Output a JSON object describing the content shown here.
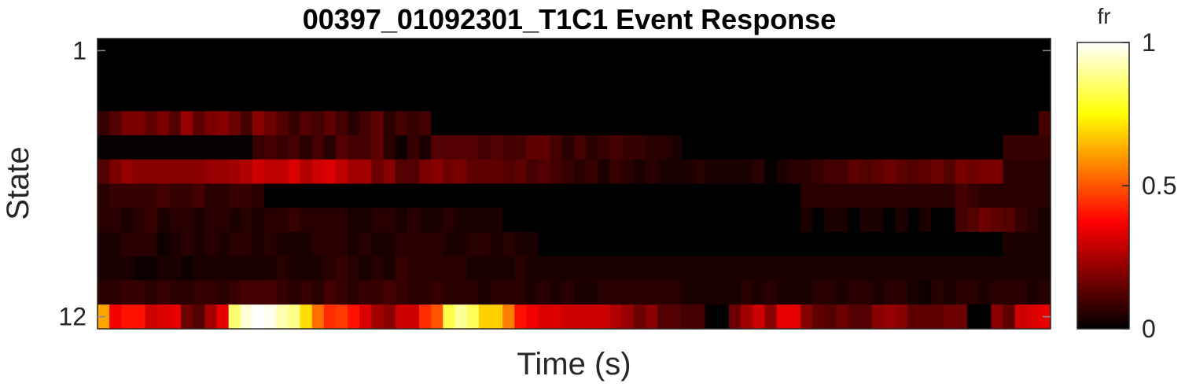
{
  "chart_data": {
    "type": "heatmap",
    "title": "00397_01092301_T1C1 Event Response",
    "xlabel": "Time (s)",
    "ylabel": "State",
    "y_tick_labels": [
      "1",
      "12"
    ],
    "y_ticks": [
      1,
      12
    ],
    "x_tick_labels": [],
    "n_rows": 12,
    "n_cols": 80,
    "colormap": "hot",
    "colorbar": {
      "title": "fr",
      "tick_labels": [
        "1",
        "0.5",
        "0"
      ],
      "ticks": [
        1,
        0.5,
        0
      ],
      "clim": [
        0,
        1
      ]
    },
    "rows": [
      {
        "state": 1,
        "values": [
          0.0,
          0.0,
          0.0,
          0.0,
          0.0,
          0.0,
          0.0,
          0.0,
          0.0,
          0.0,
          0.0,
          0.0,
          0.0,
          0.0,
          0.0,
          0.0,
          0.0,
          0.0,
          0.0,
          0.0,
          0.0,
          0.0,
          0.0,
          0.0,
          0.0,
          0.0,
          0.0,
          0.0,
          0.0,
          0.0,
          0.0,
          0.0,
          0.0,
          0.0,
          0.0,
          0.0,
          0.0,
          0.0,
          0.0,
          0.0,
          0.0,
          0.0,
          0.0,
          0.0,
          0.0,
          0.0,
          0.0,
          0.0,
          0.0,
          0.0,
          0.0,
          0.0,
          0.0,
          0.0,
          0.0,
          0.0,
          0.0,
          0.0,
          0.0,
          0.0,
          0.0,
          0.0,
          0.0,
          0.0,
          0.0,
          0.0,
          0.0,
          0.0,
          0.0,
          0.0,
          0.0,
          0.0,
          0.0,
          0.0,
          0.0,
          0.0,
          0.0,
          0.0,
          0.0,
          0.0
        ]
      },
      {
        "state": 2,
        "values": [
          0.0,
          0.0,
          0.0,
          0.0,
          0.0,
          0.0,
          0.0,
          0.0,
          0.0,
          0.0,
          0.0,
          0.0,
          0.0,
          0.0,
          0.0,
          0.0,
          0.0,
          0.0,
          0.0,
          0.0,
          0.0,
          0.0,
          0.0,
          0.0,
          0.0,
          0.0,
          0.0,
          0.0,
          0.0,
          0.0,
          0.0,
          0.0,
          0.0,
          0.0,
          0.0,
          0.0,
          0.0,
          0.0,
          0.0,
          0.0,
          0.0,
          0.0,
          0.0,
          0.0,
          0.0,
          0.0,
          0.0,
          0.0,
          0.0,
          0.0,
          0.0,
          0.0,
          0.0,
          0.0,
          0.0,
          0.0,
          0.0,
          0.0,
          0.0,
          0.0,
          0.0,
          0.0,
          0.0,
          0.0,
          0.0,
          0.0,
          0.0,
          0.0,
          0.0,
          0.0,
          0.0,
          0.0,
          0.0,
          0.0,
          0.0,
          0.0,
          0.0,
          0.0,
          0.0,
          0.0
        ]
      },
      {
        "state": 3,
        "values": [
          0.0,
          0.0,
          0.0,
          0.0,
          0.0,
          0.0,
          0.0,
          0.0,
          0.0,
          0.0,
          0.0,
          0.0,
          0.0,
          0.0,
          0.0,
          0.0,
          0.0,
          0.0,
          0.0,
          0.0,
          0.0,
          0.0,
          0.0,
          0.0,
          0.0,
          0.0,
          0.0,
          0.0,
          0.0,
          0.0,
          0.0,
          0.0,
          0.0,
          0.0,
          0.0,
          0.0,
          0.0,
          0.0,
          0.0,
          0.0,
          0.0,
          0.0,
          0.0,
          0.0,
          0.0,
          0.0,
          0.0,
          0.0,
          0.0,
          0.0,
          0.0,
          0.0,
          0.0,
          0.0,
          0.0,
          0.0,
          0.0,
          0.0,
          0.0,
          0.0,
          0.0,
          0.0,
          0.0,
          0.0,
          0.0,
          0.0,
          0.0,
          0.0,
          0.0,
          0.0,
          0.0,
          0.0,
          0.0,
          0.0,
          0.0,
          0.0,
          0.0,
          0.0,
          0.0,
          0.0
        ]
      },
      {
        "state": 4,
        "values": [
          0.08,
          0.12,
          0.18,
          0.18,
          0.14,
          0.18,
          0.12,
          0.22,
          0.14,
          0.18,
          0.2,
          0.16,
          0.1,
          0.2,
          0.16,
          0.12,
          0.08,
          0.12,
          0.1,
          0.14,
          0.1,
          0.06,
          0.1,
          0.14,
          0.06,
          0.1,
          0.08,
          0.1,
          0.0,
          0.0,
          0.0,
          0.0,
          0.0,
          0.0,
          0.0,
          0.0,
          0.0,
          0.0,
          0.0,
          0.0,
          0.0,
          0.0,
          0.0,
          0.0,
          0.0,
          0.0,
          0.0,
          0.0,
          0.0,
          0.0,
          0.0,
          0.0,
          0.0,
          0.0,
          0.0,
          0.0,
          0.0,
          0.0,
          0.0,
          0.0,
          0.0,
          0.0,
          0.0,
          0.0,
          0.0,
          0.0,
          0.0,
          0.0,
          0.0,
          0.0,
          0.0,
          0.0,
          0.0,
          0.0,
          0.0,
          0.0,
          0.0,
          0.0,
          0.0,
          0.1
        ]
      },
      {
        "state": 5,
        "values": [
          0.01,
          0.01,
          0.01,
          0.01,
          0.01,
          0.01,
          0.01,
          0.01,
          0.01,
          0.01,
          0.01,
          0.01,
          0.01,
          0.08,
          0.1,
          0.08,
          0.1,
          0.06,
          0.1,
          0.06,
          0.12,
          0.1,
          0.1,
          0.14,
          0.06,
          0.02,
          0.08,
          0.04,
          0.12,
          0.12,
          0.12,
          0.12,
          0.1,
          0.12,
          0.1,
          0.1,
          0.14,
          0.14,
          0.1,
          0.06,
          0.1,
          0.06,
          0.08,
          0.1,
          0.08,
          0.08,
          0.06,
          0.06,
          0.04,
          0.0,
          0.0,
          0.0,
          0.0,
          0.0,
          0.0,
          0.0,
          0.0,
          0.0,
          0.0,
          0.0,
          0.0,
          0.0,
          0.0,
          0.0,
          0.0,
          0.0,
          0.0,
          0.0,
          0.0,
          0.0,
          0.0,
          0.0,
          0.0,
          0.0,
          0.0,
          0.0,
          0.08,
          0.08,
          0.08,
          0.08
        ]
      },
      {
        "state": 6,
        "values": [
          0.12,
          0.18,
          0.22,
          0.2,
          0.2,
          0.2,
          0.2,
          0.2,
          0.2,
          0.22,
          0.22,
          0.24,
          0.26,
          0.3,
          0.28,
          0.28,
          0.32,
          0.26,
          0.3,
          0.32,
          0.28,
          0.24,
          0.24,
          0.16,
          0.2,
          0.12,
          0.12,
          0.18,
          0.2,
          0.16,
          0.18,
          0.14,
          0.14,
          0.14,
          0.12,
          0.14,
          0.1,
          0.12,
          0.1,
          0.08,
          0.06,
          0.08,
          0.04,
          0.08,
          0.06,
          0.04,
          0.06,
          0.04,
          0.04,
          0.04,
          0.06,
          0.04,
          0.04,
          0.04,
          0.04,
          0.06,
          0.01,
          0.04,
          0.06,
          0.06,
          0.08,
          0.1,
          0.1,
          0.14,
          0.12,
          0.14,
          0.16,
          0.14,
          0.12,
          0.14,
          0.16,
          0.12,
          0.18,
          0.16,
          0.18,
          0.18,
          0.06,
          0.06,
          0.06,
          0.06
        ]
      },
      {
        "state": 7,
        "values": [
          0.06,
          0.08,
          0.08,
          0.08,
          0.08,
          0.1,
          0.08,
          0.08,
          0.1,
          0.06,
          0.06,
          0.08,
          0.08,
          0.06,
          0.0,
          0.0,
          0.0,
          0.0,
          0.0,
          0.0,
          0.0,
          0.0,
          0.0,
          0.0,
          0.0,
          0.0,
          0.0,
          0.0,
          0.0,
          0.0,
          0.0,
          0.0,
          0.0,
          0.0,
          0.0,
          0.0,
          0.0,
          0.0,
          0.0,
          0.0,
          0.0,
          0.0,
          0.0,
          0.0,
          0.0,
          0.0,
          0.0,
          0.0,
          0.0,
          0.0,
          0.0,
          0.0,
          0.0,
          0.0,
          0.0,
          0.0,
          0.0,
          0.0,
          0.0,
          0.06,
          0.06,
          0.06,
          0.06,
          0.06,
          0.06,
          0.06,
          0.06,
          0.06,
          0.06,
          0.06,
          0.06,
          0.06,
          0.1,
          0.08,
          0.06,
          0.06,
          0.06,
          0.06,
          0.06,
          0.06
        ]
      },
      {
        "state": 8,
        "values": [
          0.06,
          0.06,
          0.04,
          0.06,
          0.08,
          0.04,
          0.06,
          0.06,
          0.04,
          0.06,
          0.06,
          0.04,
          0.06,
          0.04,
          0.06,
          0.06,
          0.08,
          0.06,
          0.06,
          0.06,
          0.06,
          0.04,
          0.04,
          0.06,
          0.06,
          0.04,
          0.06,
          0.04,
          0.04,
          0.06,
          0.04,
          0.04,
          0.04,
          0.04,
          0.0,
          0.0,
          0.0,
          0.0,
          0.0,
          0.0,
          0.0,
          0.0,
          0.0,
          0.0,
          0.0,
          0.0,
          0.0,
          0.0,
          0.0,
          0.0,
          0.0,
          0.0,
          0.0,
          0.0,
          0.0,
          0.0,
          0.0,
          0.0,
          0.0,
          0.04,
          0.0,
          0.04,
          0.04,
          0.0,
          0.04,
          0.04,
          0.0,
          0.04,
          0.0,
          0.04,
          0.0,
          0.0,
          0.1,
          0.12,
          0.16,
          0.14,
          0.12,
          0.08,
          0.06,
          0.04
        ]
      },
      {
        "state": 9,
        "values": [
          0.04,
          0.04,
          0.06,
          0.06,
          0.06,
          0.02,
          0.04,
          0.06,
          0.04,
          0.06,
          0.04,
          0.06,
          0.06,
          0.04,
          0.06,
          0.04,
          0.04,
          0.04,
          0.06,
          0.06,
          0.06,
          0.04,
          0.06,
          0.04,
          0.04,
          0.06,
          0.06,
          0.06,
          0.06,
          0.04,
          0.04,
          0.06,
          0.06,
          0.04,
          0.06,
          0.04,
          0.04,
          0.0,
          0.0,
          0.0,
          0.0,
          0.0,
          0.0,
          0.0,
          0.0,
          0.0,
          0.0,
          0.0,
          0.0,
          0.0,
          0.0,
          0.0,
          0.0,
          0.0,
          0.0,
          0.0,
          0.0,
          0.0,
          0.0,
          0.0,
          0.0,
          0.0,
          0.0,
          0.0,
          0.0,
          0.0,
          0.0,
          0.0,
          0.0,
          0.0,
          0.0,
          0.0,
          0.0,
          0.0,
          0.0,
          0.0,
          0.04,
          0.04,
          0.04,
          0.04
        ]
      },
      {
        "state": 10,
        "values": [
          0.04,
          0.04,
          0.04,
          0.02,
          0.02,
          0.04,
          0.04,
          0.02,
          0.04,
          0.04,
          0.04,
          0.04,
          0.04,
          0.04,
          0.04,
          0.06,
          0.04,
          0.04,
          0.04,
          0.06,
          0.08,
          0.06,
          0.04,
          0.06,
          0.04,
          0.08,
          0.06,
          0.06,
          0.06,
          0.06,
          0.06,
          0.04,
          0.04,
          0.04,
          0.04,
          0.06,
          0.04,
          0.04,
          0.04,
          0.04,
          0.04,
          0.04,
          0.04,
          0.04,
          0.04,
          0.04,
          0.04,
          0.04,
          0.04,
          0.04,
          0.04,
          0.04,
          0.04,
          0.04,
          0.04,
          0.04,
          0.04,
          0.04,
          0.04,
          0.04,
          0.04,
          0.04,
          0.04,
          0.04,
          0.04,
          0.04,
          0.04,
          0.04,
          0.04,
          0.04,
          0.04,
          0.04,
          0.04,
          0.04,
          0.04,
          0.04,
          0.04,
          0.04,
          0.04,
          0.04
        ]
      },
      {
        "state": 11,
        "values": [
          0.06,
          0.06,
          0.08,
          0.08,
          0.06,
          0.08,
          0.06,
          0.06,
          0.08,
          0.08,
          0.06,
          0.08,
          0.1,
          0.1,
          0.1,
          0.08,
          0.06,
          0.08,
          0.06,
          0.1,
          0.08,
          0.06,
          0.08,
          0.08,
          0.1,
          0.08,
          0.06,
          0.06,
          0.08,
          0.06,
          0.06,
          0.06,
          0.04,
          0.06,
          0.06,
          0.06,
          0.04,
          0.06,
          0.04,
          0.06,
          0.04,
          0.04,
          0.06,
          0.06,
          0.06,
          0.06,
          0.06,
          0.06,
          0.06,
          0.04,
          0.04,
          0.04,
          0.04,
          0.04,
          0.06,
          0.04,
          0.06,
          0.04,
          0.04,
          0.04,
          0.06,
          0.06,
          0.04,
          0.06,
          0.06,
          0.04,
          0.06,
          0.06,
          0.04,
          0.02,
          0.06,
          0.04,
          0.06,
          0.06,
          0.04,
          0.06,
          0.06,
          0.06,
          0.04,
          0.06
        ]
      },
      {
        "state": 12,
        "values": [
          0.62,
          0.36,
          0.4,
          0.4,
          0.3,
          0.32,
          0.34,
          0.16,
          0.12,
          0.24,
          0.34,
          0.86,
          0.96,
          1.0,
          0.98,
          0.92,
          0.88,
          0.7,
          0.54,
          0.44,
          0.46,
          0.4,
          0.32,
          0.24,
          0.2,
          0.3,
          0.3,
          0.44,
          0.5,
          0.82,
          0.9,
          0.84,
          0.68,
          0.68,
          0.56,
          0.4,
          0.36,
          0.32,
          0.32,
          0.3,
          0.3,
          0.3,
          0.3,
          0.26,
          0.22,
          0.16,
          0.2,
          0.12,
          0.12,
          0.1,
          0.1,
          0.0,
          0.0,
          0.16,
          0.24,
          0.3,
          0.2,
          0.34,
          0.34,
          0.2,
          0.14,
          0.12,
          0.16,
          0.12,
          0.12,
          0.2,
          0.22,
          0.2,
          0.14,
          0.14,
          0.14,
          0.16,
          0.16,
          0.0,
          0.0,
          0.2,
          0.14,
          0.3,
          0.32,
          0.34
        ]
      }
    ]
  }
}
